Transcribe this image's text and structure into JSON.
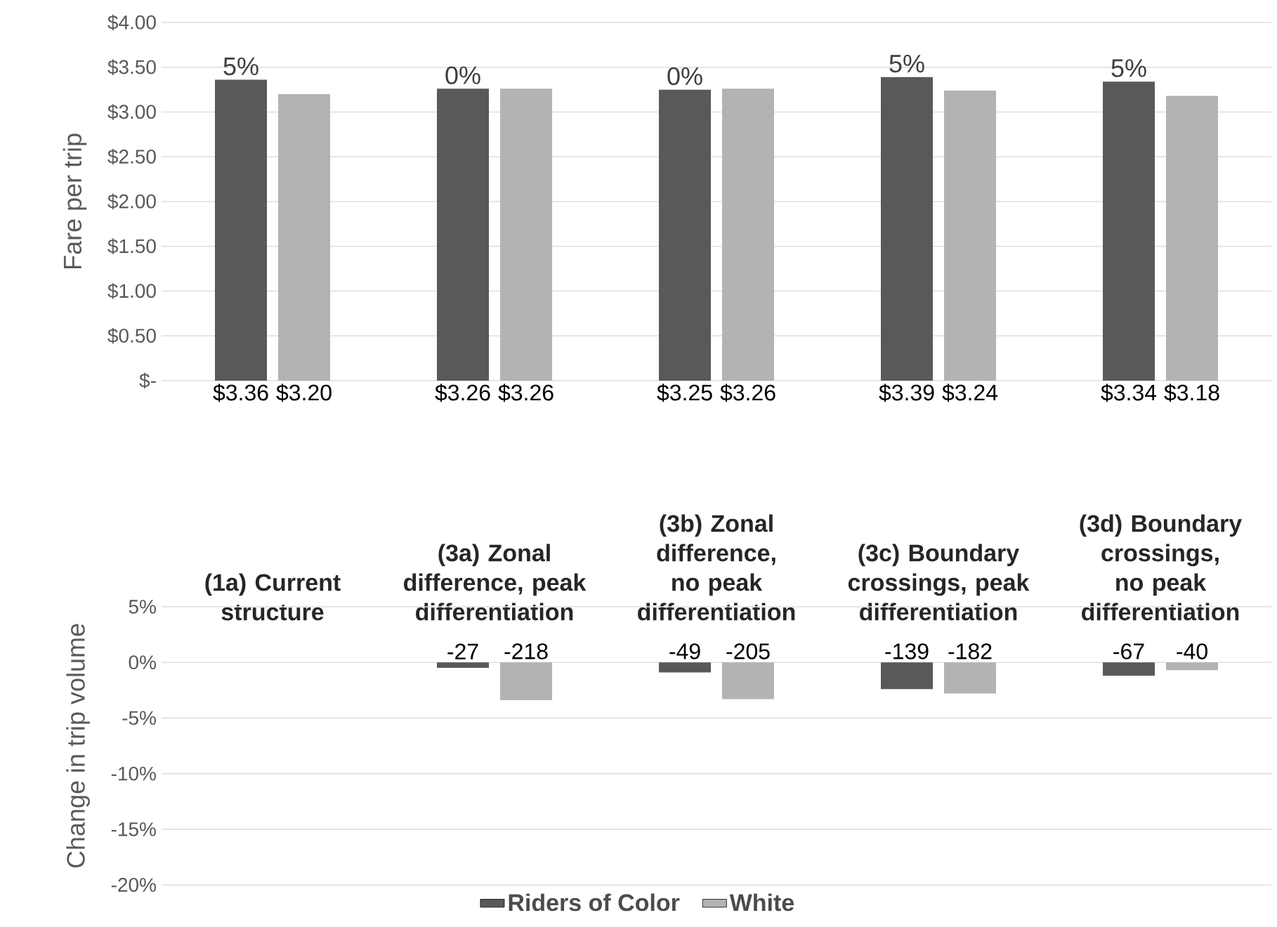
{
  "chart_data": [
    {
      "type": "bar",
      "ylabel": "Fare per trip",
      "categories": [
        "(1a) Current structure",
        "(3a) Zonal difference, peak differentiation",
        "(3b) Zonal difference, no peak differentiation",
        "(3c) Boundary crossings, peak differentiation",
        "(3d) Boundary crossings, no peak differentiation"
      ],
      "series": [
        {
          "color": "#595959",
          "values": [
            3.36,
            3.26,
            3.25,
            3.39,
            3.34
          ],
          "value_labels": [
            "$3.36",
            "$3.26",
            "$3.25",
            "$3.39",
            "$3.34"
          ]
        },
        {
          "color": "#b3b3b3",
          "values": [
            3.2,
            3.26,
            3.26,
            3.24,
            3.18
          ],
          "value_labels": [
            "$3.20",
            "$3.26",
            "$3.26",
            "$3.24",
            "$3.18"
          ]
        }
      ],
      "ylim": [
        0,
        4
      ],
      "yticks": [
        {
          "value": 0,
          "label": "$-"
        },
        {
          "value": 0.5,
          "label": "$0.50"
        },
        {
          "value": 1,
          "label": "$1.00"
        },
        {
          "value": 1.5,
          "label": "$1.50"
        },
        {
          "value": 2,
          "label": "$2.00"
        },
        {
          "value": 2.5,
          "label": "$2.50"
        },
        {
          "value": 3,
          "label": "$3.00"
        },
        {
          "value": 3.5,
          "label": "$3.50"
        },
        {
          "value": 4,
          "label": "$4.00"
        }
      ],
      "grid": "y",
      "annotations": [
        {
          "text": "5%",
          "x": "(1a) Current structure",
          "y": 3.36
        },
        {
          "text": "0%",
          "x": "(3a) Zonal difference, peak differentiation",
          "y": 3.26
        },
        {
          "text": "0%",
          "x": "(3b) Zonal difference, no peak differentiation",
          "y": 3.25
        },
        {
          "text": "5%",
          "x": "(3c) Boundary crossings, peak differentiation",
          "y": 3.39
        },
        {
          "text": "5%",
          "x": "(3d) Boundary crossings, no peak differentiation",
          "y": 3.34
        }
      ]
    },
    {
      "type": "bar",
      "ylabel": "Change in trip volume",
      "categories": [
        null,
        null,
        null,
        null,
        null
      ],
      "series": [
        {
          "name": "Riders of Color",
          "color": "#595959",
          "values": [
            null,
            -0.5,
            -0.9,
            -2.4,
            -1.2
          ]
        },
        {
          "name": "White",
          "color": "#b3b3b3",
          "values": [
            null,
            -3.4,
            -3.3,
            -2.8,
            -0.7
          ]
        }
      ],
      "annotations": [
        {
          "text": "-27",
          "y": -0.5
        },
        {
          "text": "-218",
          "y": -3.4
        },
        {
          "text": "-49",
          "y": -0.9
        },
        {
          "text": "-205",
          "y": -3.3
        },
        {
          "text": "-139",
          "y": -2.4
        },
        {
          "text": "-182",
          "y": -2.8
        },
        {
          "text": "-67",
          "y": -1.2
        },
        {
          "text": "-40",
          "y": -0.7
        }
      ],
      "ylim": [
        -20,
        5
      ],
      "yticks": [
        {
          "value": -20,
          "label": "-20%"
        },
        {
          "value": -15,
          "label": "-15%"
        },
        {
          "value": -10,
          "label": "-10%"
        },
        {
          "value": -5,
          "label": "-5%"
        },
        {
          "value": 0,
          "label": "0%"
        },
        {
          "value": 5,
          "label": "5%"
        }
      ],
      "grid": "y",
      "legend": "bottom",
      "tick_labels": "y"
    }
  ]
}
